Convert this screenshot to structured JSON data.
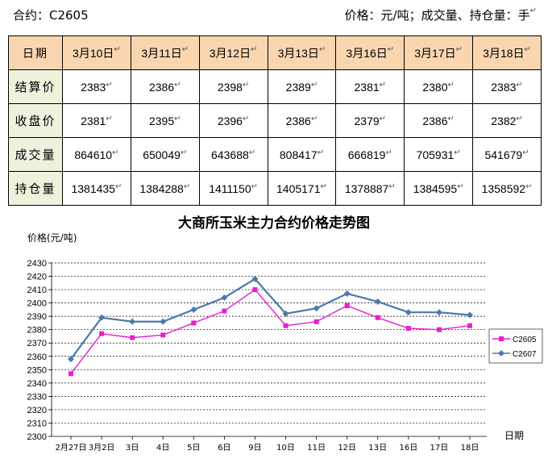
{
  "header": {
    "contract": "合约：C2605",
    "units": "价格：元/吨；成交量、持仓量：手"
  },
  "table": {
    "corner": "日期",
    "dates": [
      "3月10日",
      "3月11日",
      "3月12日",
      "3月13日",
      "3月16日",
      "3月17日",
      "3月18日"
    ],
    "rows": [
      {
        "label": "结算价",
        "values": [
          "2383",
          "2386",
          "2398",
          "2389",
          "2381",
          "2380",
          "2383"
        ]
      },
      {
        "label": "收盘价",
        "values": [
          "2381",
          "2395",
          "2396",
          "2386",
          "2379",
          "2386",
          "2382"
        ]
      },
      {
        "label": "成交量",
        "values": [
          "864610",
          "650049",
          "643688",
          "808417",
          "666819",
          "705931",
          "541679"
        ]
      },
      {
        "label": "持仓量",
        "values": [
          "1381435",
          "1384288",
          "1411150",
          "1405171",
          "1378887",
          "1384595",
          "1358592"
        ]
      }
    ],
    "header_color": "#fad6b0",
    "label_color": "#eef2dc"
  },
  "chart_data": {
    "type": "line",
    "title": "大商所玉米主力合约价格走势图",
    "ylabel": "价格(元/吨)",
    "xlabel": "日期",
    "categories": [
      "2月27日",
      "3月2日",
      "3日",
      "4日",
      "5日",
      "6日",
      "9日",
      "10日",
      "11日",
      "12日",
      "13日",
      "16日",
      "17日",
      "18日"
    ],
    "ylim": [
      2300,
      2430
    ],
    "yticks": [
      2300,
      2310,
      2320,
      2330,
      2340,
      2350,
      2360,
      2370,
      2380,
      2390,
      2400,
      2410,
      2420,
      2430
    ],
    "grid": true,
    "legend": "right",
    "series": [
      {
        "name": "C2605",
        "color": "#e61fd0",
        "marker": "square",
        "values": [
          2347,
          2377,
          2374,
          2376,
          2385,
          2394,
          2410,
          2383,
          2386,
          2398,
          2389,
          2381,
          2380,
          2383
        ]
      },
      {
        "name": "C2607",
        "color": "#4a7aaa",
        "marker": "diamond",
        "values": [
          2358,
          2389,
          2386,
          2386,
          2395,
          2404,
          2418,
          2392,
          2396,
          2407,
          2401,
          2393,
          2393,
          2391
        ]
      }
    ]
  }
}
